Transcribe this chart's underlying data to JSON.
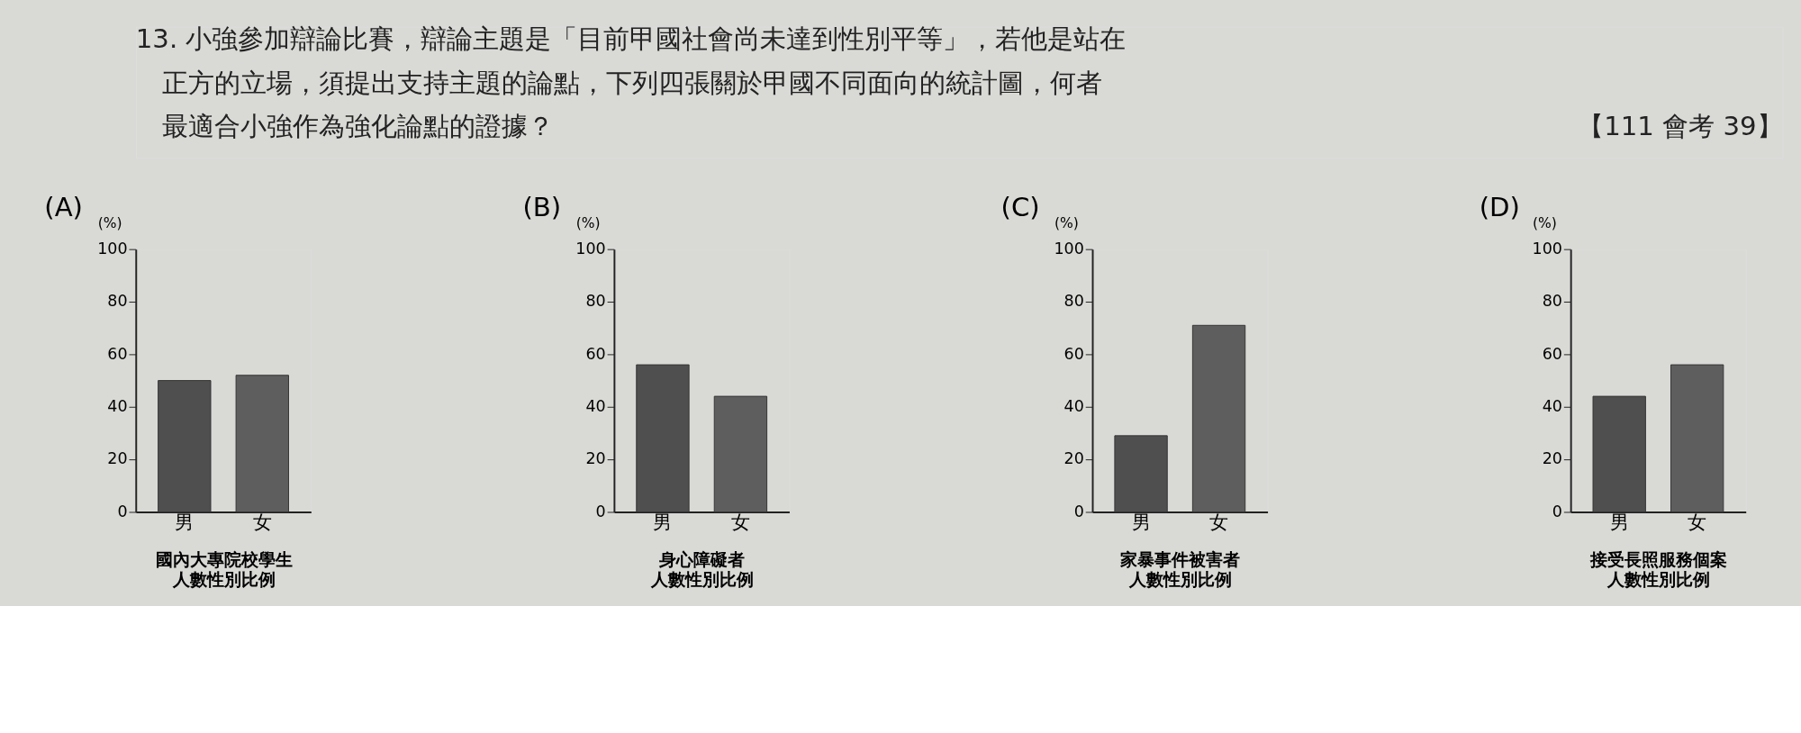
{
  "chart_data": [
    {
      "type": "bar",
      "title": "(A)",
      "ylabel": "(%)",
      "xlabel": "國內大專院校學生人數性別比例",
      "categories": [
        "男",
        "女"
      ],
      "values": [
        50,
        52
      ],
      "colors": [
        "#4f4f4f",
        "#5e5e5e"
      ],
      "ylim": [
        0,
        100
      ],
      "yticks": [
        0,
        20,
        40,
        60,
        80,
        100
      ],
      "grid": false,
      "annotations": [
        "13. 小強參加辯論比賽，辯論主題是「目前甲國社會尚未達到性別平等」，若他是站在",
        "正方的立場，須提出支持主題的論點，下列四張關於甲國不同面向的統計圖，何者",
        "最適合小強作為強化論點的證據？",
        "【111 會考 39】"
      ]
    },
    {
      "type": "bar",
      "title": "(B)",
      "ylabel": "(%)",
      "xlabel": "身心障礙者人數性別比例",
      "categories": [
        "男",
        "女"
      ],
      "values": [
        56,
        44
      ],
      "colors": [
        "#4f4f4f",
        "#5e5e5e"
      ],
      "ylim": [
        0,
        100
      ],
      "yticks": [
        0,
        20,
        40,
        60,
        80,
        100
      ],
      "grid": false
    },
    {
      "type": "bar",
      "title": "(C)",
      "ylabel": "(%)",
      "xlabel": "家暴事件被害者人數性別比例",
      "categories": [
        "男",
        "女"
      ],
      "values": [
        29,
        71
      ],
      "colors": [
        "#4f4f4f",
        "#5e5e5e"
      ],
      "ylim": [
        0,
        100
      ],
      "yticks": [
        0,
        20,
        40,
        60,
        80,
        100
      ],
      "grid": false
    },
    {
      "type": "bar",
      "title": "(D)",
      "ylabel": "(%)",
      "xlabel": "接受長照服務個案人數性別比例",
      "categories": [
        "男",
        "女"
      ],
      "values": [
        44,
        56
      ],
      "colors": [
        "#4f4f4f",
        "#5e5e5e"
      ],
      "ylim": [
        0,
        100
      ],
      "yticks": [
        0,
        20,
        40,
        60,
        80,
        100
      ],
      "grid": false
    }
  ]
}
